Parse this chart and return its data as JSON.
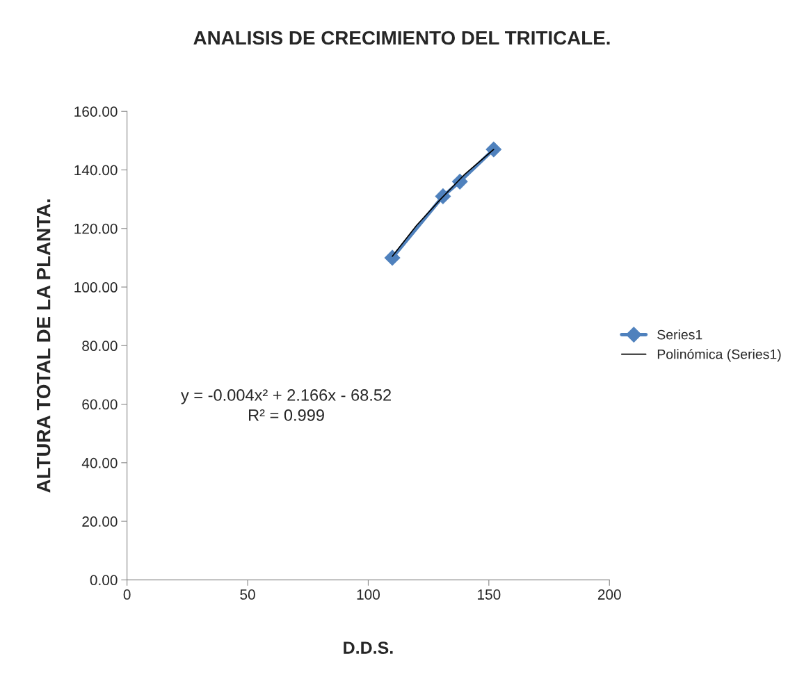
{
  "chart_data": {
    "type": "line",
    "title": "ANALISIS DE CRECIMIENTO DEL TRITICALE.",
    "xlabel": "D.D.S.",
    "ylabel": "ALTURA TOTAL DE LA PLANTA.",
    "series": [
      {
        "name": "Series1",
        "color": "#4f81bd",
        "marker": "diamond",
        "x": [
          110,
          131,
          138,
          152
        ],
        "values": [
          110,
          131,
          136,
          147
        ]
      },
      {
        "name": "Polinómica (Series1)",
        "color": "#000000",
        "marker": "none",
        "x": [
          110,
          120,
          130,
          140,
          152
        ],
        "values": [
          110.5,
          121,
          130,
          138.5,
          147
        ]
      }
    ],
    "annotations": [
      "y = -0.004x² + 2.166x - 68.52",
      "R² = 0.999"
    ],
    "xlim": [
      0,
      200
    ],
    "xticks": [
      0,
      50,
      100,
      150,
      200
    ],
    "ylim": [
      0,
      160
    ],
    "yticks": [
      {
        "value": 0,
        "label": "0.00"
      },
      {
        "value": 20,
        "label": "20.00"
      },
      {
        "value": 40,
        "label": "40.00"
      },
      {
        "value": 60,
        "label": "60.00"
      },
      {
        "value": 80,
        "label": "80.00"
      },
      {
        "value": 100,
        "label": "100.00"
      },
      {
        "value": 120,
        "label": "120.00"
      },
      {
        "value": 140,
        "label": "140.00"
      },
      {
        "value": 160,
        "label": "160.00"
      }
    ],
    "grid": false,
    "legend": "right"
  }
}
